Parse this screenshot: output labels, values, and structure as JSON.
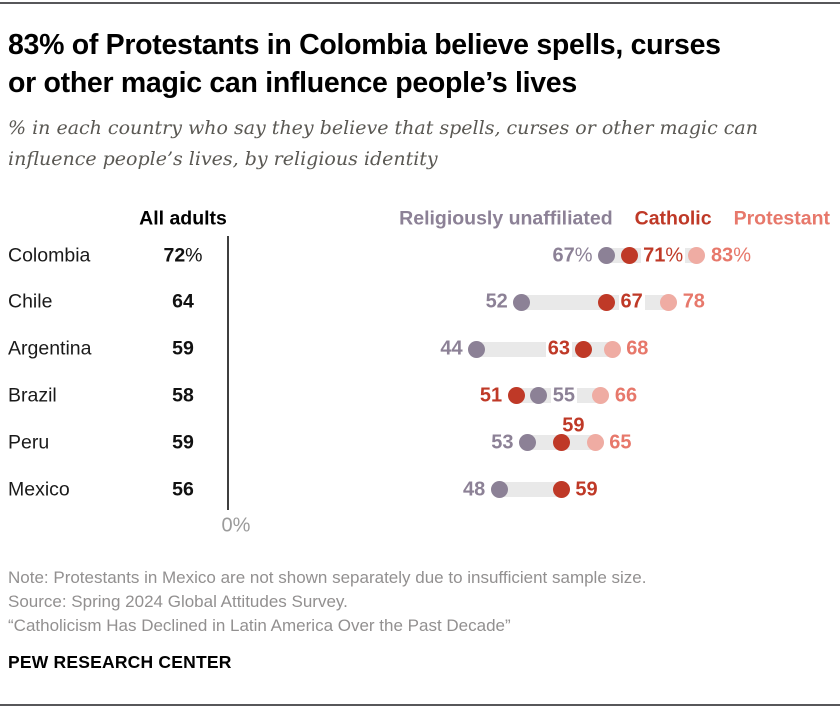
{
  "header": {
    "title_line1": "83% of Protestants in Colombia believe spells, curses",
    "title_line2": "or other magic can influence people’s lives",
    "subtitle_line1": "% in each country who say they believe that spells, curses or other magic can",
    "subtitle_line2": "influence people’s lives, by religious identity"
  },
  "chart_data": {
    "type": "scatter",
    "subtype": "horizontal-dot-plot",
    "title": "83% of Protestants in Colombia believe spells, curses or other magic can influence people’s lives",
    "all_adults_header": "All adults",
    "axis_zero_label": "0%",
    "x_range": [
      0,
      100
    ],
    "grid": false,
    "legend_position": "top-right",
    "series_order": [
      "unaffiliated",
      "catholic",
      "protestant"
    ],
    "series": {
      "unaffiliated": {
        "label": "Religiously unaffiliated",
        "dot_color": "#8c8196",
        "text_color": "#8c8196"
      },
      "catholic": {
        "label": "Catholic",
        "dot_color": "#bf3927",
        "text_color": "#bf3927"
      },
      "protestant": {
        "label": "Protestant",
        "dot_color": "#efaca3",
        "text_color": "#e7786b"
      }
    },
    "connector_color": "#e9e9e9",
    "rows": [
      {
        "country": "Colombia",
        "all_adults": "72%",
        "points": [
          {
            "series": "unaffiliated",
            "value": 67,
            "label": "67%",
            "label_pos": "left"
          },
          {
            "series": "catholic",
            "value": 71,
            "label": "71%",
            "label_pos": "right"
          },
          {
            "series": "protestant",
            "value": 83,
            "label": "83%",
            "label_pos": "right"
          }
        ]
      },
      {
        "country": "Chile",
        "all_adults": "64",
        "points": [
          {
            "series": "unaffiliated",
            "value": 52,
            "label": "52",
            "label_pos": "left"
          },
          {
            "series": "catholic",
            "value": 67,
            "label": "67",
            "label_pos": "right"
          },
          {
            "series": "protestant",
            "value": 78,
            "label": "78",
            "label_pos": "right"
          }
        ]
      },
      {
        "country": "Argentina",
        "all_adults": "59",
        "points": [
          {
            "series": "unaffiliated",
            "value": 44,
            "label": "44",
            "label_pos": "left"
          },
          {
            "series": "catholic",
            "value": 63,
            "label": "63",
            "label_pos": "left"
          },
          {
            "series": "protestant",
            "value": 68,
            "label": "68",
            "label_pos": "right"
          }
        ]
      },
      {
        "country": "Brazil",
        "all_adults": "58",
        "points": [
          {
            "series": "catholic",
            "value": 51,
            "label": "51",
            "label_pos": "left"
          },
          {
            "series": "unaffiliated",
            "value": 55,
            "label": "55",
            "label_pos": "right"
          },
          {
            "series": "protestant",
            "value": 66,
            "label": "66",
            "label_pos": "right"
          }
        ]
      },
      {
        "country": "Peru",
        "all_adults": "59",
        "points": [
          {
            "series": "unaffiliated",
            "value": 53,
            "label": "53",
            "label_pos": "left"
          },
          {
            "series": "catholic",
            "value": 59,
            "label": "59",
            "label_pos": "above"
          },
          {
            "series": "protestant",
            "value": 65,
            "label": "65",
            "label_pos": "right"
          }
        ]
      },
      {
        "country": "Mexico",
        "all_adults": "56",
        "points": [
          {
            "series": "unaffiliated",
            "value": 48,
            "label": "48",
            "label_pos": "left"
          },
          {
            "series": "catholic",
            "value": 59,
            "label": "59",
            "label_pos": "right"
          }
        ]
      }
    ]
  },
  "footer": {
    "note": "Note: Protestants in Mexico are not shown separately due to insufficient sample size.",
    "source": "Source: Spring 2024 Global Attitudes Survey.",
    "report_title": "“Catholicism Has Declined in Latin America Over the Past Decade”",
    "brand": "PEW RESEARCH CENTER"
  }
}
